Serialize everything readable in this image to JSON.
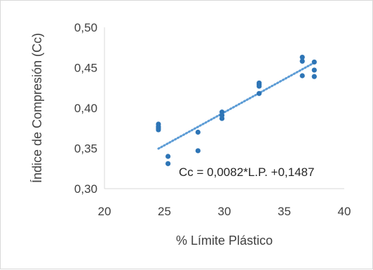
{
  "chart_data": {
    "type": "scatter",
    "title": "",
    "xlabel": "% Límite Plástico",
    "ylabel": "Índice de Compresión (Cc)",
    "xlim": [
      20,
      40
    ],
    "ylim": [
      0.3,
      0.5
    ],
    "xticks": [
      "20",
      "25",
      "30",
      "35",
      "40"
    ],
    "yticks": [
      "0,30",
      "0,35",
      "0,40",
      "0,45",
      "0,50"
    ],
    "grid": false,
    "legend": "none",
    "annotation": "Cc = 0,0082*L.P. +0,1487",
    "marker_color": "#2E75B6",
    "trendline": {
      "type": "linear",
      "slope": 0.0082,
      "intercept": 0.1487,
      "style": "dotted",
      "color": "#5B9BD5"
    },
    "series": [
      {
        "x": [
          24.5,
          24.5,
          24.5,
          24.5,
          25.3,
          25.3,
          27.8,
          27.8,
          29.8,
          29.8,
          29.8,
          32.9,
          32.9,
          32.9,
          32.9,
          36.5,
          36.5,
          36.5,
          37.5,
          37.5,
          37.5
        ],
        "y": [
          0.38,
          0.377,
          0.375,
          0.373,
          0.34,
          0.331,
          0.37,
          0.347,
          0.395,
          0.391,
          0.387,
          0.431,
          0.429,
          0.427,
          0.418,
          0.463,
          0.458,
          0.44,
          0.457,
          0.447,
          0.439
        ]
      }
    ]
  }
}
